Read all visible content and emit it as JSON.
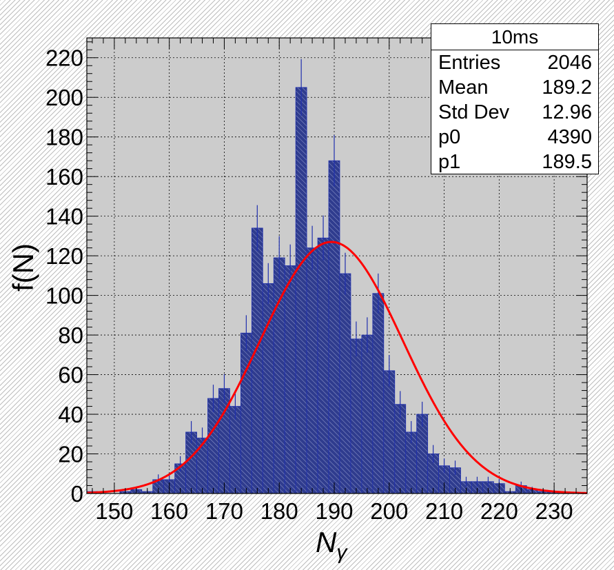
{
  "chart_data": {
    "type": "bar",
    "title": "",
    "xlabel": "N",
    "xlabel_subscript": "γ",
    "ylabel": "f(N)",
    "xlim": [
      145,
      236
    ],
    "ylim": [
      0,
      230
    ],
    "x_ticks": [
      150,
      160,
      170,
      180,
      190,
      200,
      210,
      220,
      230
    ],
    "y_ticks": [
      0,
      20,
      40,
      60,
      80,
      100,
      120,
      140,
      160,
      180,
      200,
      220
    ],
    "grid": true,
    "bin_width": 2,
    "histogram": {
      "name": "10ms",
      "bin_low_edges": [
        145,
        147,
        149,
        151,
        153,
        155,
        157,
        159,
        161,
        163,
        165,
        167,
        169,
        171,
        173,
        175,
        177,
        179,
        181,
        183,
        185,
        187,
        189,
        191,
        193,
        195,
        197,
        199,
        201,
        203,
        205,
        207,
        209,
        211,
        213,
        215,
        217,
        219,
        221,
        223,
        225,
        227,
        229,
        231,
        233,
        235
      ],
      "counts": [
        1,
        0,
        0,
        1,
        2,
        1,
        7,
        7,
        15,
        31,
        28,
        48,
        53,
        44,
        81,
        134,
        106,
        119,
        115,
        205,
        124,
        129,
        168,
        111,
        78,
        80,
        101,
        62,
        45,
        31,
        40,
        20,
        14,
        13,
        6,
        6,
        6,
        5,
        1,
        4,
        2,
        1,
        1,
        0,
        0,
        0
      ]
    },
    "fit": {
      "type": "gaussian",
      "amplitude": 127,
      "mean": 189.5,
      "sigma": 13.0,
      "color": "#ff0000"
    },
    "colors": {
      "fill": "#2f3c8e",
      "hatch": "#8891c8",
      "error_bar": "#1f2fae",
      "frame_bg": "#cccccc",
      "fit_line": "#ff0000"
    },
    "legend_placement": "top-right"
  },
  "stats_box": {
    "title": "10ms",
    "rows": [
      {
        "label": "Entries",
        "value": "2046"
      },
      {
        "label": "Mean",
        "value": "189.2"
      },
      {
        "label": "Std Dev",
        "value": "12.96"
      },
      {
        "label": "p0",
        "value": "4390"
      },
      {
        "label": "p1",
        "value": "189.5"
      }
    ]
  }
}
